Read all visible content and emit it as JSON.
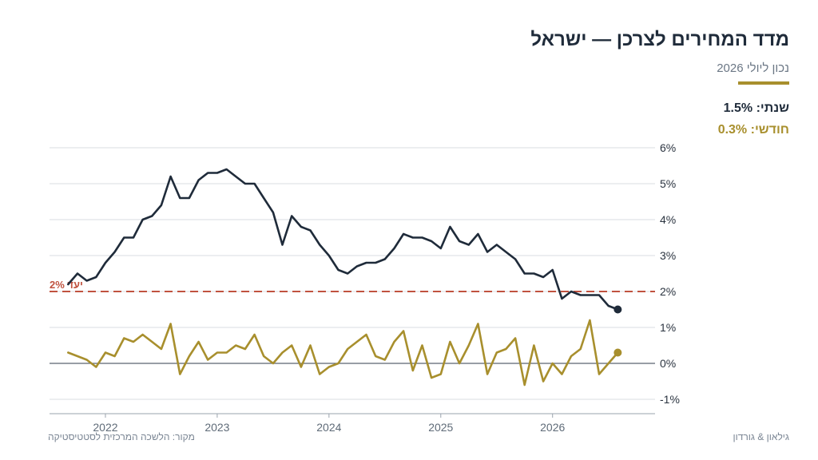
{
  "header": {
    "title": "מדד המחירים לצרכן — ישראל",
    "subtitle": "נכון ליולי 2026"
  },
  "stats": {
    "annual_label": "שנתי:",
    "annual_value": "1.5%",
    "monthly_label": "חודשי:",
    "monthly_value": "0.3%"
  },
  "footer": {
    "source": "מקור: הלשכה המרכזית לסטטיסטיקה",
    "brand": "גילאון & גורדון"
  },
  "colors": {
    "annual": "#1f2b3a",
    "monthly": "#a88f2d",
    "target": "#c0523f",
    "grid": "#d9dde2",
    "zero": "#5a6470"
  },
  "chart_data": {
    "type": "line",
    "title": "",
    "xlabel": "",
    "ylabel": "",
    "xlim": [
      "2021-07",
      "2026-12"
    ],
    "ylim": [
      -1.4,
      6
    ],
    "y_ticks": [
      6,
      5,
      4,
      3,
      2,
      1,
      0,
      -1
    ],
    "y_tick_labels": [
      "6%",
      "5%",
      "4%",
      "3%",
      "2%",
      "1%",
      "0%",
      "-1%"
    ],
    "x_ticks": [
      "2022-01",
      "2023-01",
      "2024-01",
      "2025-01",
      "2026-01"
    ],
    "x_tick_labels": [
      "2022",
      "2023",
      "2024",
      "2025",
      "2026"
    ],
    "grid": true,
    "y_axis_position": "right",
    "target_line": {
      "value": 2,
      "label": "יעד 2%"
    },
    "x": [
      "2021-09",
      "2021-10",
      "2021-11",
      "2021-12",
      "2022-01",
      "2022-02",
      "2022-03",
      "2022-04",
      "2022-05",
      "2022-06",
      "2022-07",
      "2022-08",
      "2022-09",
      "2022-10",
      "2022-11",
      "2022-12",
      "2023-01",
      "2023-02",
      "2023-03",
      "2023-04",
      "2023-05",
      "2023-06",
      "2023-07",
      "2023-08",
      "2023-09",
      "2023-10",
      "2023-11",
      "2023-12",
      "2024-01",
      "2024-02",
      "2024-03",
      "2024-04",
      "2024-05",
      "2024-06",
      "2024-07",
      "2024-08",
      "2024-09",
      "2024-10",
      "2024-11",
      "2024-12",
      "2025-01",
      "2025-02",
      "2025-03",
      "2025-04",
      "2025-05",
      "2025-06",
      "2025-07",
      "2025-08",
      "2025-09",
      "2025-10",
      "2025-11",
      "2025-12",
      "2026-01",
      "2026-02",
      "2026-03",
      "2026-04",
      "2026-05",
      "2026-06",
      "2026-07",
      "2026-08"
    ],
    "series": [
      {
        "key": "annual",
        "values": [
          2.2,
          2.5,
          2.3,
          2.4,
          2.8,
          3.1,
          3.5,
          3.5,
          4.0,
          4.1,
          4.4,
          5.2,
          4.6,
          4.6,
          5.1,
          5.3,
          5.3,
          5.4,
          5.2,
          5.0,
          5.0,
          4.6,
          4.2,
          3.3,
          4.1,
          3.8,
          3.7,
          3.3,
          3.0,
          2.6,
          2.5,
          2.7,
          2.8,
          2.8,
          2.9,
          3.2,
          3.6,
          3.5,
          3.5,
          3.4,
          3.2,
          3.8,
          3.4,
          3.3,
          3.6,
          3.1,
          3.3,
          3.1,
          2.9,
          2.5,
          2.5,
          2.4,
          2.6,
          1.8,
          2.0,
          1.9,
          1.9,
          1.9,
          1.6,
          1.5
        ]
      },
      {
        "key": "monthly",
        "values": [
          0.3,
          0.2,
          0.1,
          -0.1,
          0.3,
          0.2,
          0.7,
          0.6,
          0.8,
          0.6,
          0.4,
          1.1,
          -0.3,
          0.2,
          0.6,
          0.1,
          0.3,
          0.3,
          0.5,
          0.4,
          0.8,
          0.2,
          0.0,
          0.3,
          0.5,
          -0.1,
          0.5,
          -0.3,
          -0.1,
          0.0,
          0.4,
          0.6,
          0.8,
          0.2,
          0.1,
          0.6,
          0.9,
          -0.2,
          0.5,
          -0.4,
          -0.3,
          0.6,
          0.0,
          0.5,
          1.1,
          -0.3,
          0.3,
          0.4,
          0.7,
          -0.6,
          0.5,
          -0.5,
          0.0,
          -0.3,
          0.2,
          0.4,
          1.2,
          -0.3,
          0.0,
          0.3
        ]
      }
    ]
  }
}
